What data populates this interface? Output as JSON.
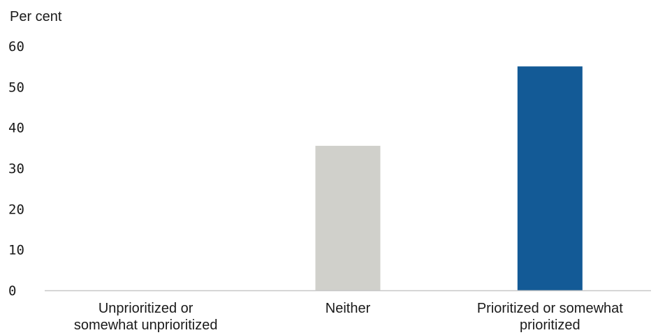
{
  "chart_data": {
    "type": "bar",
    "title": "",
    "xlabel": "",
    "ylabel": "Per cent",
    "ylim": [
      0,
      60
    ],
    "yticks": [
      0,
      10,
      20,
      30,
      40,
      50,
      60
    ],
    "categories": [
      [
        "Unprioritized or",
        "somewhat unprioritized"
      ],
      [
        "Neither"
      ],
      [
        "Prioritized or somewhat",
        "prioritized"
      ]
    ],
    "values": [
      0,
      35.5,
      55
    ],
    "bar_colors": [
      "#d0d0cb",
      "#d0d0cb",
      "#135a96"
    ],
    "axis_color": "#c8c8c8",
    "grid": false
  }
}
